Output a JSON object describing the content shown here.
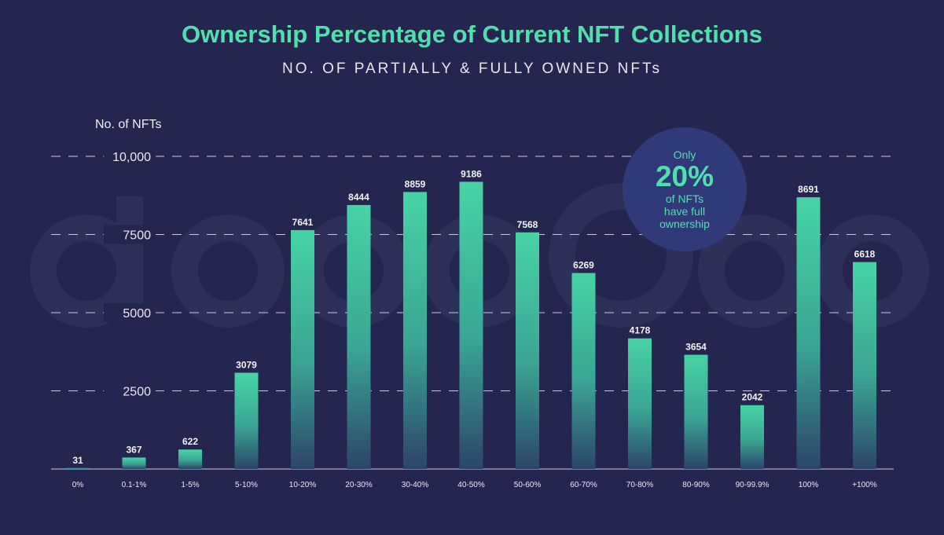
{
  "watermark": "dappGambl",
  "badge": {
    "top": "Only",
    "big": "20%",
    "bottom1": "of NFTs",
    "bottom2": "have full",
    "bottom3": "ownership"
  },
  "colors": {
    "background": "#24264f",
    "accent": "#52dfae",
    "bar_top": "#47d3a6",
    "bar_bottom": "#2c4568"
  },
  "chart_data": {
    "type": "bar",
    "title": "Ownership Percentage of Current NFT Collections",
    "subtitle": "NO. OF PARTIALLY & FULLY OWNED NFTs",
    "xlabel": "",
    "ylabel": "No. of NFTs",
    "ylim": [
      0,
      10000
    ],
    "yticks": [
      2500,
      5000,
      7500,
      10000
    ],
    "ytick_labels": [
      "2500",
      "5000",
      "7500",
      "10,000"
    ],
    "grid": true,
    "categories": [
      "0%",
      "0.1-1%",
      "1-5%",
      "5-10%",
      "10-20%",
      "20-30%",
      "30-40%",
      "40-50%",
      "50-60%",
      "60-70%",
      "70-80%",
      "80-90%",
      "90-99.9%",
      "100%",
      "+100%"
    ],
    "values": [
      31,
      367,
      622,
      3079,
      7641,
      8444,
      8859,
      9186,
      7568,
      6269,
      4178,
      3654,
      2042,
      8691,
      6618
    ]
  }
}
